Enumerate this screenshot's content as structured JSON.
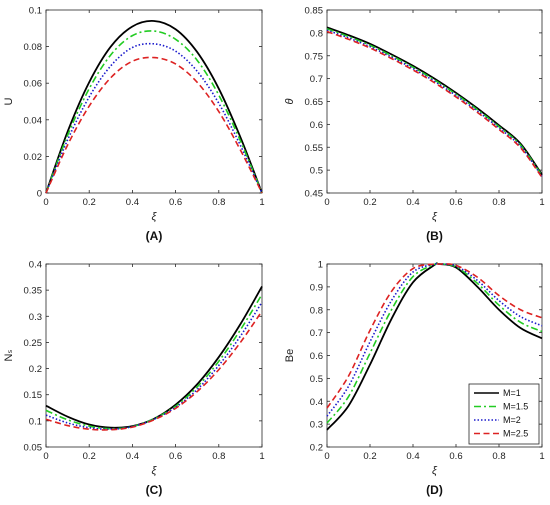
{
  "figure": {
    "legend": [
      "M=1",
      "M=1.5",
      "M=2",
      "M=2.5"
    ]
  },
  "styles": {
    "colors": [
      "#000000",
      "#22cc22",
      "#1a1acc",
      "#dd2222"
    ],
    "dashes": [
      "",
      "7,3,2,3",
      "1.5,2",
      "6,3.5"
    ]
  },
  "chart_data": [
    {
      "type": "line",
      "panel": "(A)",
      "xlabel": "ξ",
      "ylabel": "U",
      "xlim": [
        0,
        1
      ],
      "ylim": [
        0,
        0.1
      ],
      "xticks": [
        "0",
        "0.2",
        "0.4",
        "0.6",
        "0.8",
        "1"
      ],
      "yticks": [
        "0",
        "0.02",
        "0.04",
        "0.06",
        "0.08",
        "0.1"
      ],
      "x": [
        0,
        0.1,
        0.2,
        0.3,
        0.4,
        0.5,
        0.6,
        0.7,
        0.8,
        0.9,
        1
      ],
      "series": [
        {
          "name": "M=1",
          "values": [
            0,
            0.0335,
            0.0605,
            0.08,
            0.091,
            0.094,
            0.0895,
            0.077,
            0.057,
            0.0305,
            0
          ]
        },
        {
          "name": "M=1.5",
          "values": [
            0,
            0.0315,
            0.057,
            0.0755,
            0.086,
            0.0885,
            0.084,
            0.0725,
            0.0535,
            0.0285,
            0
          ]
        },
        {
          "name": "M=2",
          "values": [
            0,
            0.029,
            0.0525,
            0.0695,
            0.0795,
            0.0815,
            0.0775,
            0.0665,
            0.049,
            0.026,
            0
          ]
        },
        {
          "name": "M=2.5",
          "values": [
            0,
            0.0262,
            0.0475,
            0.063,
            0.072,
            0.074,
            0.0705,
            0.0605,
            0.0445,
            0.0235,
            0
          ]
        }
      ]
    },
    {
      "type": "line",
      "panel": "(B)",
      "xlabel": "ξ",
      "ylabel": "θ",
      "xlim": [
        0,
        1
      ],
      "ylim": [
        0.45,
        0.85
      ],
      "xticks": [
        "0",
        "0.2",
        "0.4",
        "0.6",
        "0.8",
        "1"
      ],
      "yticks": [
        "0.45",
        "0.5",
        "0.55",
        "0.6",
        "0.65",
        "0.7",
        "0.75",
        "0.8",
        "0.85"
      ],
      "x": [
        0,
        0.1,
        0.2,
        0.3,
        0.4,
        0.5,
        0.6,
        0.7,
        0.8,
        0.9,
        1
      ],
      "series": [
        {
          "name": "M=1",
          "values": [
            0.812,
            0.795,
            0.776,
            0.753,
            0.728,
            0.7,
            0.669,
            0.635,
            0.598,
            0.558,
            0.49
          ]
        },
        {
          "name": "M=1.5",
          "values": [
            0.809,
            0.792,
            0.773,
            0.75,
            0.725,
            0.697,
            0.666,
            0.632,
            0.595,
            0.555,
            0.488
          ]
        },
        {
          "name": "M=2",
          "values": [
            0.806,
            0.789,
            0.77,
            0.747,
            0.722,
            0.694,
            0.663,
            0.629,
            0.592,
            0.552,
            0.486
          ]
        },
        {
          "name": "M=2.5",
          "values": [
            0.803,
            0.786,
            0.767,
            0.744,
            0.719,
            0.691,
            0.66,
            0.626,
            0.589,
            0.549,
            0.484
          ]
        }
      ]
    },
    {
      "type": "line",
      "panel": "(C)",
      "xlabel": "ξ",
      "ylabel": "Nₛ",
      "xlim": [
        0,
        1
      ],
      "ylim": [
        0.05,
        0.4
      ],
      "xticks": [
        "0",
        "0.2",
        "0.4",
        "0.6",
        "0.8",
        "1"
      ],
      "yticks": [
        "0.05",
        "0.1",
        "0.15",
        "0.2",
        "0.25",
        "0.3",
        "0.35",
        "0.4"
      ],
      "x": [
        0,
        0.1,
        0.2,
        0.3,
        0.4,
        0.5,
        0.6,
        0.7,
        0.8,
        0.9,
        1
      ],
      "series": [
        {
          "name": "M=1",
          "values": [
            0.129,
            0.108,
            0.093,
            0.087,
            0.09,
            0.104,
            0.131,
            0.17,
            0.222,
            0.285,
            0.357
          ]
        },
        {
          "name": "M=1.5",
          "values": [
            0.12,
            0.102,
            0.09,
            0.085,
            0.089,
            0.104,
            0.128,
            0.165,
            0.214,
            0.274,
            0.342
          ]
        },
        {
          "name": "M=2",
          "values": [
            0.111,
            0.096,
            0.087,
            0.084,
            0.089,
            0.103,
            0.126,
            0.16,
            0.206,
            0.262,
            0.327
          ]
        },
        {
          "name": "M=2.5",
          "values": [
            0.103,
            0.091,
            0.084,
            0.083,
            0.088,
            0.102,
            0.124,
            0.156,
            0.198,
            0.25,
            0.31
          ]
        }
      ]
    },
    {
      "type": "line",
      "panel": "(D)",
      "xlabel": "ξ",
      "ylabel": "Be",
      "xlim": [
        0,
        1
      ],
      "ylim": [
        0.2,
        1
      ],
      "xticks": [
        "0",
        "0.2",
        "0.4",
        "0.6",
        "0.8",
        "1"
      ],
      "yticks": [
        "0.2",
        "0.3",
        "0.4",
        "0.5",
        "0.6",
        "0.7",
        "0.8",
        "0.9",
        "1"
      ],
      "legend_position": "bottom-right",
      "x": [
        0,
        0.1,
        0.2,
        0.3,
        0.4,
        0.5,
        0.52,
        0.6,
        0.7,
        0.8,
        0.9,
        1
      ],
      "series": [
        {
          "name": "M=1",
          "values": [
            0.275,
            0.38,
            0.56,
            0.76,
            0.92,
            0.996,
            1.0,
            0.985,
            0.9,
            0.8,
            0.72,
            0.675
          ]
        },
        {
          "name": "M=1.5",
          "values": [
            0.305,
            0.42,
            0.61,
            0.8,
            0.945,
            0.998,
            1.0,
            0.988,
            0.915,
            0.82,
            0.745,
            0.705
          ]
        },
        {
          "name": "M=2",
          "values": [
            0.335,
            0.465,
            0.66,
            0.84,
            0.965,
            0.999,
            1.0,
            0.991,
            0.928,
            0.84,
            0.77,
            0.73
          ]
        },
        {
          "name": "M=2.5",
          "values": [
            0.37,
            0.51,
            0.71,
            0.88,
            0.98,
            1.0,
            1.0,
            0.994,
            0.942,
            0.862,
            0.8,
            0.765
          ]
        }
      ]
    }
  ]
}
